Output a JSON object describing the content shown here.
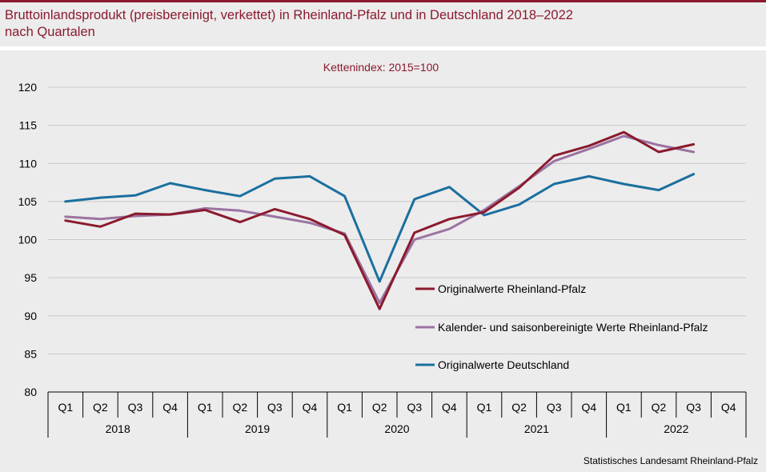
{
  "header": {
    "title_line1": "Bruttoinlandsprodukt (preisbereinigt, verkettet) in Rheinland-Pfalz und in Deutschland 2018–2022",
    "title_line2": "nach Quartalen"
  },
  "footer": {
    "source": "Statistisches Landesamt Rheinland-Pfalz"
  },
  "colors": {
    "accent": "#8b1a2e",
    "grid": "#c8c8c8",
    "background": "#ececec"
  },
  "chart_data": {
    "type": "line",
    "subtitle": "Kettenindex: 2015=100",
    "ylim": [
      80,
      120
    ],
    "yticks": [
      80,
      85,
      90,
      95,
      100,
      105,
      110,
      115,
      120
    ],
    "categories": [
      "Q1",
      "Q2",
      "Q3",
      "Q4",
      "Q1",
      "Q2",
      "Q3",
      "Q4",
      "Q1",
      "Q2",
      "Q3",
      "Q4",
      "Q1",
      "Q2",
      "Q3",
      "Q4",
      "Q1",
      "Q2",
      "Q3",
      "Q4"
    ],
    "years": [
      "2018",
      "2019",
      "2020",
      "2021",
      "2022"
    ],
    "grid": true,
    "legend_position": "center-right",
    "series": [
      {
        "name": "Originalwerte Rheinland-Pfalz",
        "color": "#8b1a2e",
        "values": [
          102.5,
          101.7,
          103.4,
          103.3,
          103.9,
          102.3,
          104.0,
          102.7,
          100.6,
          90.9,
          100.9,
          102.7,
          103.6,
          106.8,
          111.0,
          112.3,
          114.1,
          111.5,
          112.5,
          null
        ]
      },
      {
        "name": "Kalender- und saisonbereinigte Werte Rheinland-Pfalz",
        "color": "#9b73a2",
        "values": [
          103.0,
          102.7,
          103.1,
          103.3,
          104.1,
          103.8,
          103.0,
          102.2,
          100.8,
          91.7,
          100.0,
          101.4,
          103.9,
          107.0,
          110.3,
          111.9,
          113.6,
          112.4,
          111.5,
          null
        ]
      },
      {
        "name": "Originalwerte Deutschland",
        "color": "#1b6f9e",
        "values": [
          105.0,
          105.5,
          105.8,
          107.4,
          106.5,
          105.7,
          108.0,
          108.3,
          105.7,
          94.5,
          105.3,
          106.9,
          103.2,
          104.6,
          107.3,
          108.3,
          107.3,
          106.5,
          108.6,
          null
        ]
      }
    ]
  }
}
